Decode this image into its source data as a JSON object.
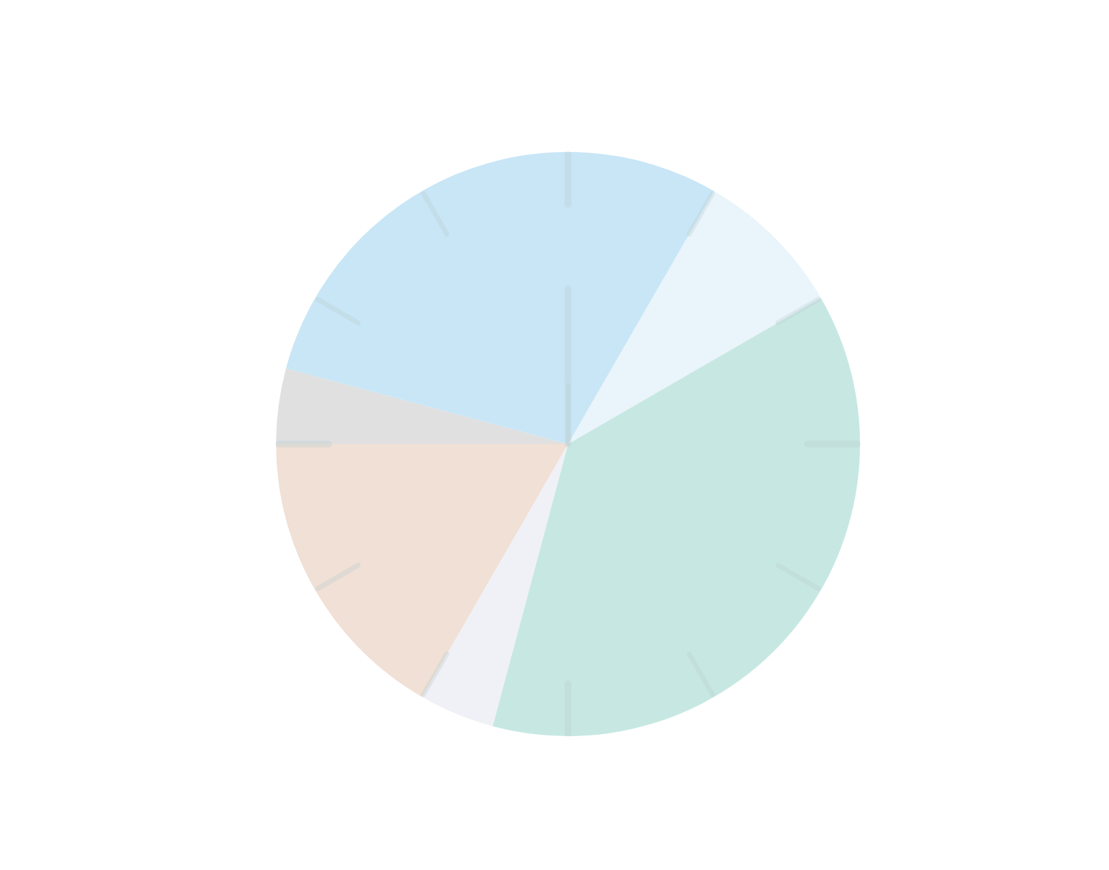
{
  "chart_data": {
    "type": "pie",
    "categories": [
      null,
      null,
      null,
      null,
      null,
      null
    ],
    "values": [
      8.33,
      37.5,
      4.17,
      16.67,
      4.17,
      29.17
    ],
    "colors": [
      "#eaf4fb",
      "#c7e8e2",
      "#f0f1f7",
      "#f0e0d5",
      "#e0e0e0",
      "#c8e6f6"
    ]
  }
}
